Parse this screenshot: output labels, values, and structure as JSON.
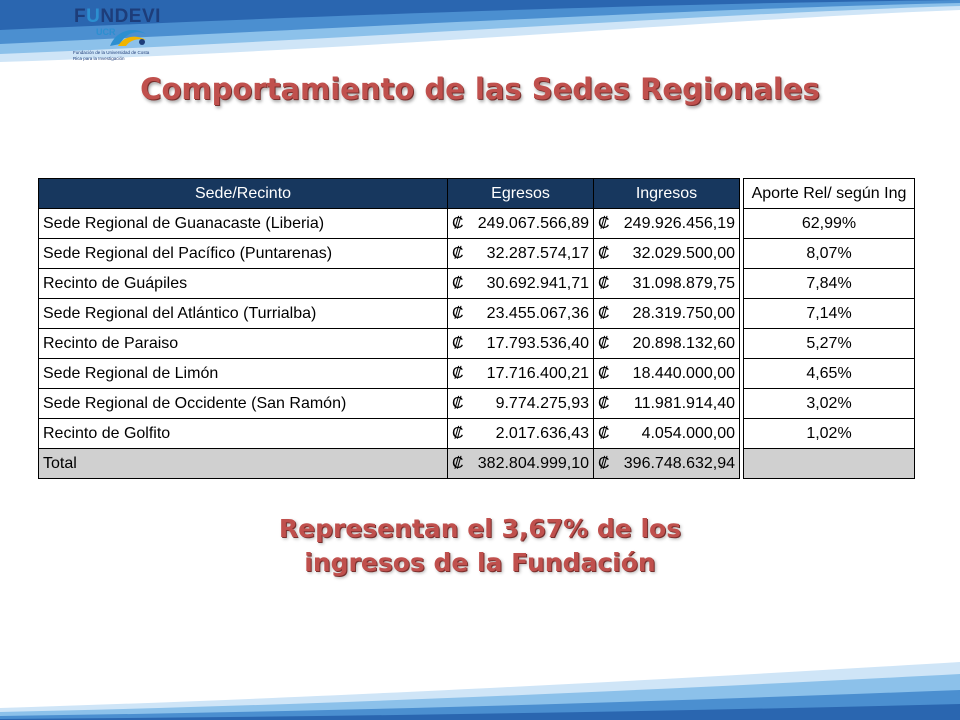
{
  "logo": {
    "name_pre": "F",
    "name_u": "U",
    "name_post": "NDEVI",
    "ucr": "UCR",
    "subtitle": "Fundación de la Universidad de Costa Rica para la Investigación"
  },
  "title": "Comportamiento de las Sedes Regionales",
  "table": {
    "headers": {
      "sede": "Sede/Recinto",
      "egresos": "Egresos",
      "ingresos": "Ingresos",
      "aporte": "Aporte Rel/ según Ing"
    },
    "currency_symbol": "₡",
    "rows": [
      {
        "sede": "Sede Regional de Guanacaste (Liberia)",
        "egresos": "249.067.566,89",
        "ingresos": "249.926.456,19",
        "aporte": "62,99%"
      },
      {
        "sede": "Sede Regional del Pacífico (Puntarenas)",
        "egresos": "32.287.574,17",
        "ingresos": "32.029.500,00",
        "aporte": "8,07%"
      },
      {
        "sede": "Recinto de Guápiles",
        "egresos": "30.692.941,71",
        "ingresos": "31.098.879,75",
        "aporte": "7,84%"
      },
      {
        "sede": "Sede Regional del Atlántico (Turrialba)",
        "egresos": "23.455.067,36",
        "ingresos": "28.319.750,00",
        "aporte": "7,14%"
      },
      {
        "sede": "Recinto de Paraiso",
        "egresos": "17.793.536,40",
        "ingresos": "20.898.132,60",
        "aporte": "5,27%"
      },
      {
        "sede": "Sede Regional de Limón",
        "egresos": "17.716.400,21",
        "ingresos": "18.440.000,00",
        "aporte": "4,65%"
      },
      {
        "sede": "Sede Regional de Occidente (San Ramón)",
        "egresos": "9.774.275,93",
        "ingresos": "11.981.914,40",
        "aporte": "3,02%"
      },
      {
        "sede": "Recinto de Golfito",
        "egresos": "2.017.636,43",
        "ingresos": "4.054.000,00",
        "aporte": "1,02%"
      }
    ],
    "total": {
      "sede": "Total",
      "egresos": "382.804.999,10",
      "ingresos": "396.748.632,94",
      "aporte": ""
    }
  },
  "note": {
    "line1": "Representan el 3,67% de los",
    "line2": "ingresos de la Fundación"
  },
  "colors": {
    "band_dark": "#2a66b0",
    "band_light": "#8cc1ea",
    "header_bg": "#17375e",
    "title_red": "#c0504d",
    "total_bg": "#d0d0d0"
  }
}
